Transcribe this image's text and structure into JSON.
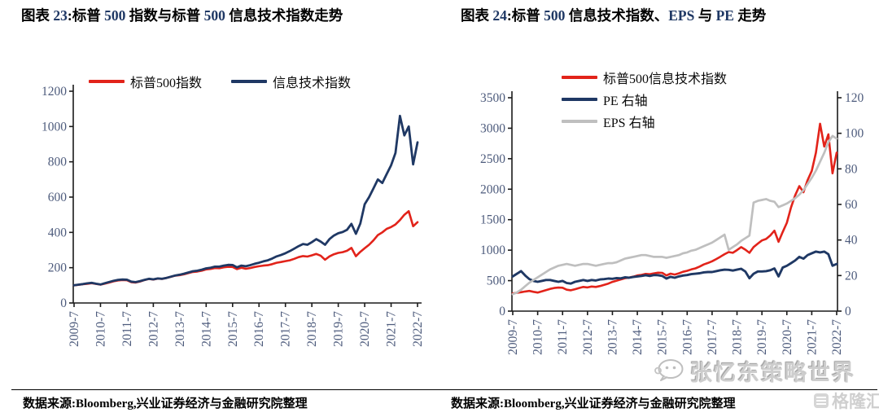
{
  "chart_data": [
    {
      "type": "line",
      "title": "图表 23: 标普 500 指数与标普 500 信息技术指数走势",
      "title_segments": [
        {
          "text": "图表 ",
          "accent": false
        },
        {
          "text": "23",
          "accent": true
        },
        {
          "text": ":标普 ",
          "accent": false
        },
        {
          "text": "500",
          "accent": true
        },
        {
          "text": " 指数与标普 ",
          "accent": false
        },
        {
          "text": "500",
          "accent": true
        },
        {
          "text": " 信息技术指数走势",
          "accent": false
        }
      ],
      "legend": [
        {
          "label": "标普500指数",
          "color": "#E2231A"
        },
        {
          "label": "信息技术指数",
          "color": "#1F3864"
        }
      ],
      "legend_position": "top-center",
      "grid": false,
      "left_axis": {
        "min": 0,
        "max": 1200,
        "step": 200,
        "ticks": [
          0,
          200,
          400,
          600,
          800,
          1000,
          1200
        ]
      },
      "right_axis": null,
      "x_labels": [
        "2009-7",
        "2010-7",
        "2011-7",
        "2012-7",
        "2013-7",
        "2014-7",
        "2015-7",
        "2016-7",
        "2017-7",
        "2018-7",
        "2019-7",
        "2020-7",
        "2021-7",
        "2022-7"
      ],
      "series": [
        {
          "name": "标普500指数",
          "axis": "left",
          "color": "#E2231A",
          "width": 2.6,
          "values": [
            100,
            103,
            106,
            109,
            112,
            108,
            104,
            110,
            116,
            123,
            128,
            130,
            129,
            118,
            116,
            122,
            130,
            136,
            133,
            138,
            136,
            142,
            148,
            155,
            158,
            163,
            170,
            176,
            178,
            183,
            190,
            193,
            198,
            197,
            202,
            205,
            204,
            192,
            200,
            194,
            198,
            204,
            208,
            212,
            214,
            220,
            228,
            232,
            237,
            242,
            250,
            260,
            266,
            263,
            270,
            278,
            268,
            245,
            264,
            276,
            284,
            288,
            296,
            312,
            265,
            290,
            310,
            330,
            355,
            385,
            400,
            420,
            430,
            445,
            470,
            500,
            520,
            435,
            458
          ]
        },
        {
          "name": "信息技术指数",
          "axis": "left",
          "color": "#1F3864",
          "width": 2.8,
          "values": [
            100,
            104,
            107,
            111,
            114,
            109,
            105,
            112,
            119,
            126,
            131,
            133,
            132,
            121,
            118,
            124,
            131,
            137,
            134,
            139,
            137,
            142,
            149,
            156,
            160,
            166,
            173,
            180,
            183,
            189,
            196,
            200,
            206,
            206,
            212,
            216,
            215,
            202,
            212,
            208,
            214,
            222,
            228,
            236,
            242,
            252,
            264,
            272,
            282,
            294,
            308,
            322,
            334,
            330,
            345,
            362,
            348,
            330,
            362,
            382,
            395,
            402,
            415,
            448,
            392,
            450,
            560,
            600,
            650,
            700,
            680,
            730,
            780,
            850,
            1060,
            950,
            1000,
            785,
            910
          ]
        }
      ],
      "source": "数据来源:Bloomberg,兴业证券经济与金融研究院整理"
    },
    {
      "type": "line",
      "title": "图表 24: 标普 500 信息技术指数、EPS 与 PE 走势",
      "title_segments": [
        {
          "text": "图表 ",
          "accent": false
        },
        {
          "text": "24",
          "accent": true
        },
        {
          "text": ":标普 ",
          "accent": false
        },
        {
          "text": "500",
          "accent": true
        },
        {
          "text": " 信息技术指数、",
          "accent": false
        },
        {
          "text": "EPS",
          "accent": true
        },
        {
          "text": " 与 ",
          "accent": false
        },
        {
          "text": "PE",
          "accent": true
        },
        {
          "text": " 走势",
          "accent": false
        }
      ],
      "legend": [
        {
          "label": "标普500信息技术指数",
          "color": "#E2231A"
        },
        {
          "label": "PE 右轴",
          "color": "#1F3864"
        },
        {
          "label": "EPS 右轴",
          "color": "#BFBFBF"
        }
      ],
      "legend_position": "top-left-stacked",
      "grid": false,
      "left_axis": {
        "min": 0,
        "max": 3500,
        "step": 500,
        "ticks": [
          0,
          500,
          1000,
          1500,
          2000,
          2500,
          3000,
          3500
        ]
      },
      "right_axis": {
        "min": 0,
        "max": 120,
        "step": 20,
        "ticks": [
          0,
          20,
          40,
          60,
          80,
          100,
          120
        ]
      },
      "x_labels": [
        "2009-7",
        "2010-7",
        "2011-7",
        "2012-7",
        "2013-7",
        "2014-7",
        "2015-7",
        "2016-7",
        "2017-7",
        "2018-7",
        "2019-7",
        "2020-7",
        "2021-7",
        "2022-7"
      ],
      "series": [
        {
          "name": "标普500信息技术指数",
          "axis": "left",
          "color": "#E2231A",
          "width": 2.6,
          "values": [
            290,
            302,
            310,
            322,
            331,
            316,
            305,
            325,
            345,
            365,
            380,
            386,
            383,
            351,
            342,
            360,
            380,
            397,
            389,
            403,
            397,
            412,
            432,
            452,
            480,
            500,
            520,
            540,
            550,
            565,
            585,
            595,
            610,
            605,
            620,
            630,
            628,
            585,
            615,
            600,
            620,
            645,
            661,
            684,
            702,
            731,
            766,
            789,
            818,
            853,
            893,
            934,
            969,
            957,
            1001,
            1050,
            1009,
            957,
            1050,
            1108,
            1160,
            1183,
            1241,
            1320,
            1137,
            1299,
            1450,
            1700,
            1900,
            2050,
            1950,
            2150,
            2300,
            2600,
            3074,
            2700,
            2900,
            2260,
            2600
          ]
        },
        {
          "name": "PE 右轴",
          "axis": "right",
          "color": "#1F3864",
          "width": 2.9,
          "values": [
            19.5,
            21,
            22.5,
            20,
            18,
            17,
            16.5,
            17,
            17.5,
            17.5,
            17,
            16.5,
            17,
            15.8,
            15.5,
            16.5,
            17,
            17.5,
            17,
            17.5,
            17.2,
            17.8,
            18,
            18.3,
            18.2,
            18.6,
            18.4,
            19,
            18.8,
            19.2,
            19.5,
            19.8,
            20.2,
            19.8,
            20.3,
            20.2,
            19.8,
            18.3,
            19.3,
            18.8,
            19.5,
            20,
            20.3,
            20.8,
            21,
            21.3,
            21.8,
            22,
            22,
            22.5,
            23,
            23.3,
            23.2,
            22.8,
            23.3,
            23.8,
            22.3,
            18.5,
            21,
            22.3,
            22.3,
            22.5,
            23,
            24,
            19.5,
            24.5,
            25.5,
            27,
            28.5,
            30.5,
            29.5,
            31.5,
            32.5,
            33.5,
            33,
            33.5,
            32,
            25.5,
            26.5
          ]
        },
        {
          "name": "EPS 右轴",
          "axis": "right",
          "color": "#BFBFBF",
          "width": 2.7,
          "values": [
            9.5,
            10.5,
            12,
            14,
            16,
            17.5,
            19,
            20.5,
            22,
            23.5,
            24.5,
            25.5,
            26,
            26.5,
            26,
            25.5,
            26,
            26.5,
            26.5,
            26,
            25.5,
            26,
            26.5,
            27,
            27,
            27.5,
            28.5,
            29.5,
            30,
            30.5,
            31,
            31.5,
            31.5,
            31,
            30.5,
            30.5,
            30.5,
            30,
            30.5,
            31,
            31.5,
            32.5,
            33,
            34,
            34.5,
            35.5,
            36.5,
            37.5,
            38.5,
            40,
            41.5,
            43,
            34.5,
            36,
            37.5,
            39.5,
            41,
            42.5,
            61,
            62,
            62.5,
            63,
            62,
            61.5,
            58.5,
            59.5,
            60.5,
            62,
            63.5,
            65.5,
            68,
            71.5,
            75,
            79,
            84,
            89,
            95,
            98.5,
            97
          ]
        }
      ],
      "source": "数据来源:Bloomberg,兴业证券经济与金融研究院整理"
    }
  ],
  "watermarks": {
    "brand": "张忆东策略世界",
    "corner": "格隆汇"
  },
  "colors": {
    "accent_title": "#1F3864",
    "series_red": "#E2231A",
    "series_navy": "#1F3864",
    "series_gray": "#BFBFBF",
    "axis_label": "#4d5b7c"
  }
}
